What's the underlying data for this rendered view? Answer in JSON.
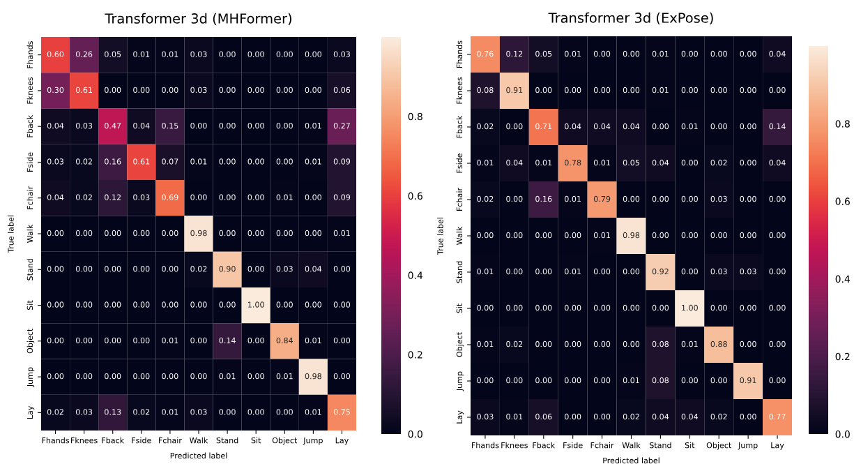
{
  "chart_data": [
    {
      "type": "heatmap",
      "title": "Transformer 3d (MHFormer)",
      "xlabel": "Predicted label",
      "ylabel": "True label",
      "categories": [
        "Fhands",
        "Fknees",
        "Fback",
        "Fside",
        "Fchair",
        "Walk",
        "Stand",
        "Sit",
        "Object",
        "Jump",
        "Lay"
      ],
      "y_categories": [
        "Fhands",
        "Fknees",
        "Fback",
        "Fside",
        "Fchair",
        "Walk",
        "Stand",
        "Sit",
        "Object",
        "Jump",
        "Lay"
      ],
      "cells": [
        [
          0.6,
          0.26,
          0.05,
          0.01,
          0.01,
          0.03,
          0.0,
          0.0,
          0.0,
          0.0,
          0.03
        ],
        [
          0.3,
          0.61,
          0.0,
          0.0,
          0.0,
          0.03,
          0.0,
          0.0,
          0.0,
          0.0,
          0.06
        ],
        [
          0.04,
          0.03,
          0.47,
          0.04,
          0.15,
          0.0,
          0.0,
          0.0,
          0.0,
          0.01,
          0.27
        ],
        [
          0.03,
          0.02,
          0.16,
          0.61,
          0.07,
          0.01,
          0.0,
          0.0,
          0.0,
          0.01,
          0.09
        ],
        [
          0.04,
          0.02,
          0.12,
          0.03,
          0.69,
          0.0,
          0.0,
          0.0,
          0.01,
          0.0,
          0.09
        ],
        [
          0.0,
          0.0,
          0.0,
          0.0,
          0.0,
          0.98,
          0.0,
          0.0,
          0.0,
          0.0,
          0.01
        ],
        [
          0.0,
          0.0,
          0.0,
          0.0,
          0.0,
          0.02,
          0.9,
          0.0,
          0.03,
          0.04,
          0.0
        ],
        [
          0.0,
          0.0,
          0.0,
          0.0,
          0.0,
          0.0,
          0.0,
          1.0,
          0.0,
          0.0,
          0.0
        ],
        [
          0.0,
          0.0,
          0.0,
          0.0,
          0.01,
          0.0,
          0.14,
          0.0,
          0.84,
          0.01,
          0.0
        ],
        [
          0.0,
          0.0,
          0.0,
          0.0,
          0.0,
          0.0,
          0.01,
          0.0,
          0.01,
          0.98,
          0.0
        ],
        [
          0.02,
          0.03,
          0.13,
          0.02,
          0.01,
          0.03,
          0.0,
          0.0,
          0.0,
          0.01,
          0.75
        ]
      ],
      "cell_labels": [
        [
          "0.60",
          "0.26",
          "0.05",
          "0.01",
          "0.01",
          "0.03",
          "0.00",
          "0.00",
          "0.00",
          "0.00",
          "0.03"
        ],
        [
          "0.30",
          "0.61",
          "0.00",
          "0.00",
          "0.00",
          "0.03",
          "0.00",
          "0.00",
          "0.00",
          "0.00",
          "0.06"
        ],
        [
          "0.04",
          "0.03",
          "0.47",
          "0.04",
          "0.15",
          "0.00",
          "0.00",
          "0.00",
          "0.00",
          "0.01",
          "0.27"
        ],
        [
          "0.03",
          "0.02",
          "0.16",
          "0.61",
          "0.07",
          "0.01",
          "0.00",
          "0.00",
          "0.00",
          "0.01",
          "0.09"
        ],
        [
          "0.04",
          "0.02",
          "0.12",
          "0.03",
          "0.69",
          "0.00",
          "0.00",
          "0.00",
          "0.01",
          "0.00",
          "0.09"
        ],
        [
          "0.00",
          "0.00",
          "0.00",
          "0.00",
          "0.00",
          "0.98",
          "0.00",
          "0.00",
          "0.00",
          "0.00",
          "0.01"
        ],
        [
          "0.00",
          "0.00",
          "0.00",
          "0.00",
          "0.00",
          "0.02",
          "0.90",
          "0.00",
          "0.03",
          "0.04",
          "0.00"
        ],
        [
          "0.00",
          "0.00",
          "0.00",
          "0.00",
          "0.00",
          "0.00",
          "0.00",
          "1.00",
          "0.00",
          "0.00",
          "0.00"
        ],
        [
          "0.00",
          "0.00",
          "0.00",
          "0.00",
          "0.01",
          "0.00",
          "0.14",
          "0.00",
          "0.84",
          "0.01",
          "0.00"
        ],
        [
          "0.00",
          "0.00",
          "0.00",
          "0.00",
          "0.00",
          "0.00",
          "0.01",
          "0.00",
          "0.01",
          "0.98",
          "0.00"
        ],
        [
          "0.02",
          "0.03",
          "0.13",
          "0.02",
          "0.01",
          "0.03",
          "0.00",
          "0.00",
          "0.00",
          "0.01",
          "0.75"
        ]
      ],
      "clim": [
        0,
        1
      ],
      "cticks": [
        {
          "value": 0,
          "label": "0.0"
        },
        0.2,
        0.4,
        0.6,
        0.8
      ]
    },
    {
      "type": "heatmap",
      "title": "Transformer 3d (ExPose)",
      "xlabel": "Predicted label",
      "ylabel": "True label",
      "categories": [
        "Fhands",
        "Fknees",
        "Fback",
        "Fside",
        "Fchair",
        "Walk",
        "Stand",
        "Sit",
        "Object",
        "Jump",
        "Lay"
      ],
      "y_categories": [
        "Fhands",
        "Fknees",
        "Fback",
        "Fside",
        "Fchair",
        "Walk",
        "Stand",
        "Sit",
        "Object",
        "Jump",
        "Lay"
      ],
      "cells": [
        [
          0.76,
          0.12,
          0.05,
          0.01,
          0.0,
          0.0,
          0.01,
          0.0,
          0.0,
          0.0,
          0.04
        ],
        [
          0.08,
          0.91,
          0.0,
          0.0,
          0.0,
          0.0,
          0.01,
          0.0,
          0.0,
          0.0,
          0.0
        ],
        [
          0.02,
          0.0,
          0.71,
          0.04,
          0.04,
          0.04,
          0.0,
          0.01,
          0.0,
          0.0,
          0.14
        ],
        [
          0.01,
          0.04,
          0.01,
          0.78,
          0.01,
          0.05,
          0.04,
          0.0,
          0.02,
          0.0,
          0.04
        ],
        [
          0.02,
          0.0,
          0.16,
          0.01,
          0.79,
          0.0,
          0.0,
          0.0,
          0.03,
          0.0,
          0.0
        ],
        [
          0.0,
          0.0,
          0.0,
          0.0,
          0.01,
          0.98,
          0.0,
          0.0,
          0.0,
          0.0,
          0.0
        ],
        [
          0.01,
          0.0,
          0.0,
          0.01,
          0.0,
          0.0,
          0.92,
          0.0,
          0.03,
          0.03,
          0.0
        ],
        [
          0.0,
          0.0,
          0.0,
          0.0,
          0.0,
          0.0,
          0.0,
          1.0,
          0.0,
          0.0,
          0.0
        ],
        [
          0.01,
          0.02,
          0.0,
          0.0,
          0.0,
          0.0,
          0.08,
          0.01,
          0.88,
          0.0,
          0.0
        ],
        [
          0.0,
          0.0,
          0.0,
          0.0,
          0.0,
          0.01,
          0.08,
          0.0,
          0.0,
          0.91,
          0.0
        ],
        [
          0.03,
          0.01,
          0.06,
          0.0,
          0.0,
          0.02,
          0.04,
          0.04,
          0.02,
          0.0,
          0.77
        ]
      ],
      "cell_labels": [
        [
          "0.76",
          "0.12",
          "0.05",
          "0.01",
          "0.00",
          "0.00",
          "0.01",
          "0.00",
          "0.00",
          "0.00",
          "0.04"
        ],
        [
          "0.08",
          "0.91",
          "0.00",
          "0.00",
          "0.00",
          "0.00",
          "0.01",
          "0.00",
          "0.00",
          "0.00",
          "0.00"
        ],
        [
          "0.02",
          "0.00",
          "0.71",
          "0.04",
          "0.04",
          "0.04",
          "0.00",
          "0.01",
          "0.00",
          "0.00",
          "0.14"
        ],
        [
          "0.01",
          "0.04",
          "0.01",
          "0.78",
          "0.01",
          "0.05",
          "0.04",
          "0.00",
          "0.02",
          "0.00",
          "0.04"
        ],
        [
          "0.02",
          "0.00",
          "0.16",
          "0.01",
          "0.79",
          "0.00",
          "0.00",
          "0.00",
          "0.03",
          "0.00",
          "0.00"
        ],
        [
          "0.00",
          "0.00",
          "0.00",
          "0.00",
          "0.01",
          "0.98",
          "0.00",
          "0.00",
          "0.00",
          "0.00",
          "0.00"
        ],
        [
          "0.01",
          "0.00",
          "0.00",
          "0.01",
          "0.00",
          "0.00",
          "0.92",
          "0.00",
          "0.03",
          "0.03",
          "0.00"
        ],
        [
          "0.00",
          "0.00",
          "0.00",
          "0.00",
          "0.00",
          "0.00",
          "0.00",
          "1.00",
          "0.00",
          "0.00",
          "0.00"
        ],
        [
          "0.01",
          "0.02",
          "0.00",
          "0.00",
          "0.00",
          "0.00",
          "0.08",
          "0.01",
          "0.88",
          "0.00",
          "0.00"
        ],
        [
          "0.00",
          "0.00",
          "0.00",
          "0.00",
          "0.00",
          "0.01",
          "0.08",
          "0.00",
          "0.00",
          "0.91",
          "0.00"
        ],
        [
          "0.03",
          "0.01",
          "0.06",
          "0.00",
          "0.00",
          "0.02",
          "0.04",
          "0.04",
          "0.02",
          "0.00",
          "0.77"
        ]
      ],
      "clim": [
        0,
        1
      ],
      "cticks": [
        {
          "value": 0,
          "label": "0.0"
        },
        0.2,
        0.4,
        0.6,
        0.8
      ]
    }
  ]
}
